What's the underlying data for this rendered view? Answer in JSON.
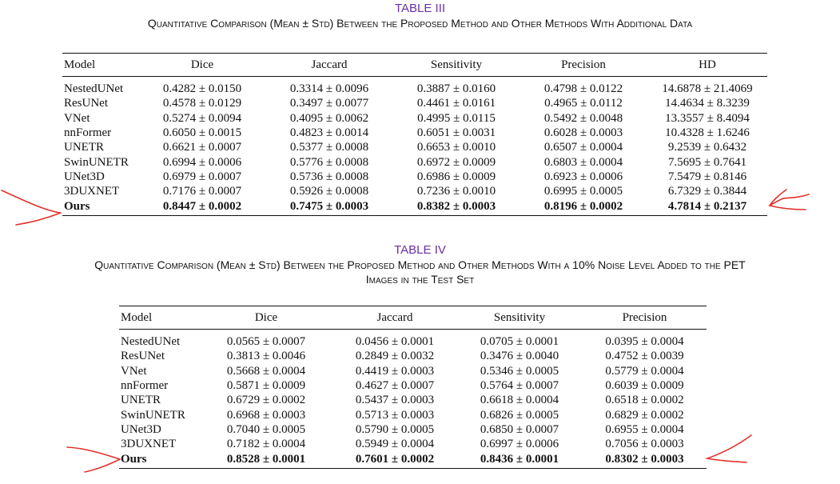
{
  "tables": [
    {
      "number": "TABLE III",
      "title": "Quantitative Comparison (Mean ± Std) Between the Proposed Method and Other Methods With Additional Data",
      "title_line2": "",
      "columns": [
        "Model",
        "Dice",
        "Jaccard",
        "Sensitivity",
        "Precision",
        "HD"
      ],
      "rows": [
        [
          "NestedUNet",
          "0.4282 ± 0.0150",
          "0.3314 ± 0.0096",
          "0.3887 ± 0.0160",
          "0.4798 ± 0.0122",
          "14.6878 ± 21.4069"
        ],
        [
          "ResUNet",
          "0.4578 ± 0.0129",
          "0.3497 ± 0.0077",
          "0.4461 ± 0.0161",
          "0.4965 ± 0.0112",
          "14.4634 ± 8.3239"
        ],
        [
          "VNet",
          "0.5274 ± 0.0094",
          "0.4095 ± 0.0062",
          "0.4995 ± 0.0115",
          "0.5492 ± 0.0048",
          "13.3557 ± 8.4094"
        ],
        [
          "nnFormer",
          "0.6050 ± 0.0015",
          "0.4823 ± 0.0014",
          "0.6051 ± 0.0031",
          "0.6028 ± 0.0003",
          "10.4328 ± 1.6246"
        ],
        [
          "UNETR",
          "0.6621 ± 0.0007",
          "0.5377 ± 0.0008",
          "0.6653 ± 0.0010",
          "0.6507 ± 0.0004",
          "9.2539 ± 0.6432"
        ],
        [
          "SwinUNETR",
          "0.6994 ± 0.0006",
          "0.5776 ± 0.0008",
          "0.6972 ± 0.0009",
          "0.6803 ± 0.0004",
          "7.5695 ± 0.7641"
        ],
        [
          "UNet3D",
          "0.6979 ± 0.0007",
          "0.5736 ± 0.0008",
          "0.6986 ± 0.0009",
          "0.6923 ± 0.0006",
          "7.5479 ± 0.8146"
        ],
        [
          "3DUXNET",
          "0.7176 ± 0.0007",
          "0.5926 ± 0.0008",
          "0.7236 ± 0.0010",
          "0.6995 ± 0.0005",
          "6.7329 ± 0.3844"
        ],
        [
          "Ours",
          "0.8447 ± 0.0002",
          "0.7475 ± 0.0003",
          "0.8382 ± 0.0003",
          "0.8196 ± 0.0002",
          "4.7814 ± 0.2137"
        ]
      ]
    },
    {
      "number": "TABLE IV",
      "title": "Quantitative Comparison (Mean ± Std) Between the Proposed Method and Other Methods With a 10% Noise Level Added to the PET",
      "title_line2": "Images in the Test Set",
      "columns": [
        "Model",
        "Dice",
        "Jaccard",
        "Sensitivity",
        "Precision"
      ],
      "rows": [
        [
          "NestedUNet",
          "0.0565 ± 0.0007",
          "0.0456 ± 0.0001",
          "0.0705 ± 0.0001",
          "0.0395 ± 0.0004"
        ],
        [
          "ResUNet",
          "0.3813 ± 0.0046",
          "0.2849 ± 0.0032",
          "0.3476 ± 0.0040",
          "0.4752 ± 0.0039"
        ],
        [
          "VNet",
          "0.5668 ± 0.0004",
          "0.4419 ± 0.0003",
          "0.5346 ± 0.0005",
          "0.5779 ± 0.0004"
        ],
        [
          "nnFormer",
          "0.5871 ± 0.0009",
          "0.4627 ± 0.0007",
          "0.5764 ± 0.0007",
          "0.6039 ± 0.0009"
        ],
        [
          "UNETR",
          "0.6729 ± 0.0002",
          "0.5437 ± 0.0003",
          "0.6618 ± 0.0004",
          "0.6518 ± 0.0002"
        ],
        [
          "SwinUNETR",
          "0.6968 ± 0.0003",
          "0.5713 ± 0.0003",
          "0.6826 ± 0.0005",
          "0.6829 ± 0.0002"
        ],
        [
          "UNet3D",
          "0.7040 ± 0.0005",
          "0.5790 ± 0.0005",
          "0.6850 ± 0.0007",
          "0.6955 ± 0.0004"
        ],
        [
          "3DUXNET",
          "0.7182 ± 0.0004",
          "0.5949 ± 0.0004",
          "0.6997 ± 0.0006",
          "0.7056 ± 0.0003"
        ],
        [
          "Ours",
          "0.8528 ± 0.0001",
          "0.7601 ± 0.0002",
          "0.8436 ± 0.0001",
          "0.8302 ± 0.0003"
        ]
      ]
    }
  ],
  "annotation_color": "#e0322a"
}
